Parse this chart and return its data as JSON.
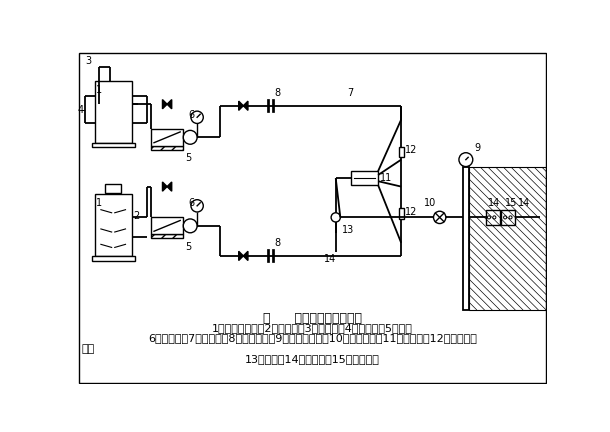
{
  "title": "图      双液注浆工艺系统图",
  "caption_line1": "1、高速摒拌机；2、吸浆管；3、回浆管；4、进浆阀；5、泵；",
  "caption_line2": "6、压力表；7、输浆管；8、快速接头；9、孔口压力表；10、锂管接头；11、混合器；12、单向阀；",
  "caption_line3": "13、三通；14、止浆塞；15、注浆孔；",
  "bg_color": "#ffffff",
  "line_color": "#000000",
  "fontsize_title": 9,
  "fontsize_caption": 8
}
